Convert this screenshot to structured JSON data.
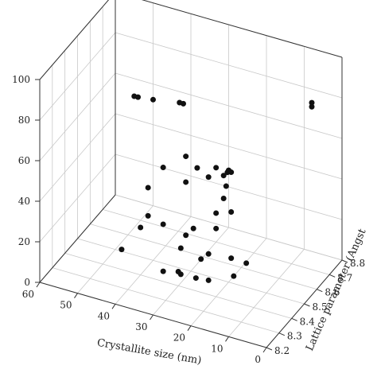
{
  "chart_data": {
    "type": "scatter",
    "title": "",
    "xlabel": "Crystallite size (nm)",
    "ylabel": "Lattice parameter (Angst",
    "zlabel": "",
    "x_ticks": [
      "0",
      "10",
      "20",
      "30",
      "40",
      "50",
      "60"
    ],
    "y_ticks": [
      "8.2",
      "8.3",
      "8.4",
      "8.5",
      "8.6",
      "8.7",
      "8.8"
    ],
    "z_ticks": [
      "0",
      "20",
      "40",
      "60",
      "80",
      "100"
    ],
    "xlim": [
      0,
      60
    ],
    "ylim": [
      8.2,
      8.8
    ],
    "zlim": [
      0,
      100
    ],
    "grid": true,
    "marker_color": "#111111",
    "points": [
      {
        "x": 55.0,
        "y": 8.8,
        "z": 51.3
      },
      {
        "x": 54.0,
        "y": 8.8,
        "z": 51.4
      },
      {
        "x": 50.0,
        "y": 8.8,
        "z": 52.3
      },
      {
        "x": 43.0,
        "y": 8.8,
        "z": 54.6
      },
      {
        "x": 42.0,
        "y": 8.8,
        "z": 54.6
      },
      {
        "x": 30.0,
        "y": 8.8,
        "z": 28.2
      },
      {
        "x": 40.0,
        "y": 8.4,
        "z": 23.4
      },
      {
        "x": 38.0,
        "y": 8.4,
        "z": 44.1
      },
      {
        "x": 38.0,
        "y": 8.4,
        "z": 30.2
      },
      {
        "x": 34.0,
        "y": 8.4,
        "z": 28.2
      },
      {
        "x": 34.0,
        "y": 8.4,
        "z": 56.2
      },
      {
        "x": 28.0,
        "y": 8.4,
        "z": 64.9
      },
      {
        "x": 28.0,
        "y": 8.4,
        "z": 52.2
      },
      {
        "x": 28.0,
        "y": 8.4,
        "z": 26.0
      },
      {
        "x": 25.0,
        "y": 8.4,
        "z": 60.8
      },
      {
        "x": 20.0,
        "y": 8.4,
        "z": 63.6
      },
      {
        "x": 22.0,
        "y": 8.4,
        "z": 57.9
      },
      {
        "x": 20.0,
        "y": 8.4,
        "z": 41.2
      },
      {
        "x": 22.0,
        "y": 8.4,
        "z": 7.0
      },
      {
        "x": 20.0,
        "y": 8.4,
        "z": 33.6
      },
      {
        "x": 18.0,
        "y": 8.4,
        "z": 60.8
      },
      {
        "x": 18.0,
        "y": 8.4,
        "z": 49.5
      },
      {
        "x": 17.0,
        "y": 8.4,
        "z": 62.9
      },
      {
        "x": 16.0,
        "y": 8.4,
        "z": 63.5
      },
      {
        "x": 24.0,
        "y": 8.4,
        "z": 16.4
      },
      {
        "x": 22.0,
        "y": 8.4,
        "z": 20.0
      },
      {
        "x": 22.0,
        "y": 8.3,
        "z": 15.3
      },
      {
        "x": 26.0,
        "y": 8.3,
        "z": 15.0
      },
      {
        "x": 14.0,
        "y": 8.3,
        "z": 64.9
      },
      {
        "x": 8.0,
        "y": 8.8,
        "z": 73.3
      },
      {
        "x": 8.0,
        "y": 8.8,
        "z": 71.3
      },
      {
        "x": 26.0,
        "y": 8.4,
        "z": 30.4
      },
      {
        "x": 16.0,
        "y": 8.4,
        "z": 43.9
      },
      {
        "x": 30.0,
        "y": 8.4,
        "z": 7.0
      },
      {
        "x": 26.0,
        "y": 8.3,
        "z": 27.9
      },
      {
        "x": 34.0,
        "y": 8.4,
        "z": 5.0
      },
      {
        "x": 45.0,
        "y": 8.4,
        "z": 9.9
      },
      {
        "x": 12.0,
        "y": 8.3,
        "z": 21.6
      },
      {
        "x": 16.0,
        "y": 8.4,
        "z": 21.1
      },
      {
        "x": 12.0,
        "y": 8.4,
        "z": 20.8
      }
    ]
  }
}
